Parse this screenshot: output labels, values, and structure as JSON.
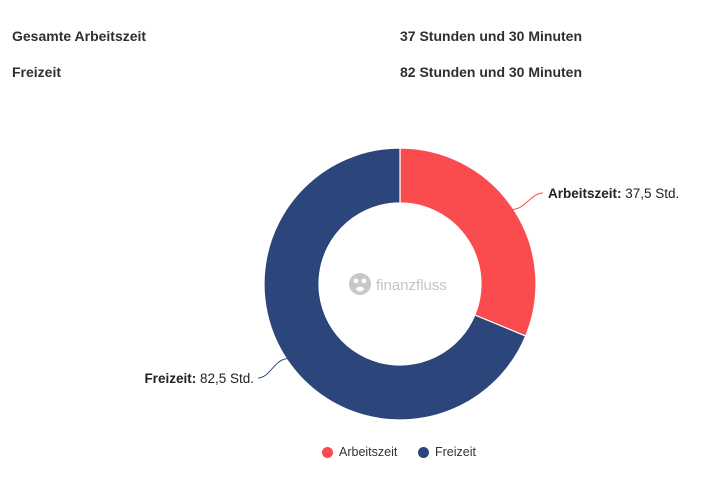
{
  "summary": {
    "rows": [
      {
        "label": "Gesamte Arbeitszeit",
        "value": "37 Stunden und 30 Minuten"
      },
      {
        "label": "Freizeit",
        "value": "82 Stunden und 30 Minuten"
      }
    ]
  },
  "watermark": "finanzfluss",
  "chart_data": {
    "type": "pie",
    "variant": "donut",
    "series": [
      {
        "name": "Arbeitszeit",
        "value": 37.5,
        "label_bold": "Arbeitszeit:",
        "label_value": "37,5 Std.",
        "color": "#fa4b4e"
      },
      {
        "name": "Freizeit",
        "value": 82.5,
        "label_bold": "Freizeit:",
        "label_value": "82,5 Std.",
        "color": "#2c467b"
      }
    ],
    "legend_position": "bottom-center"
  }
}
